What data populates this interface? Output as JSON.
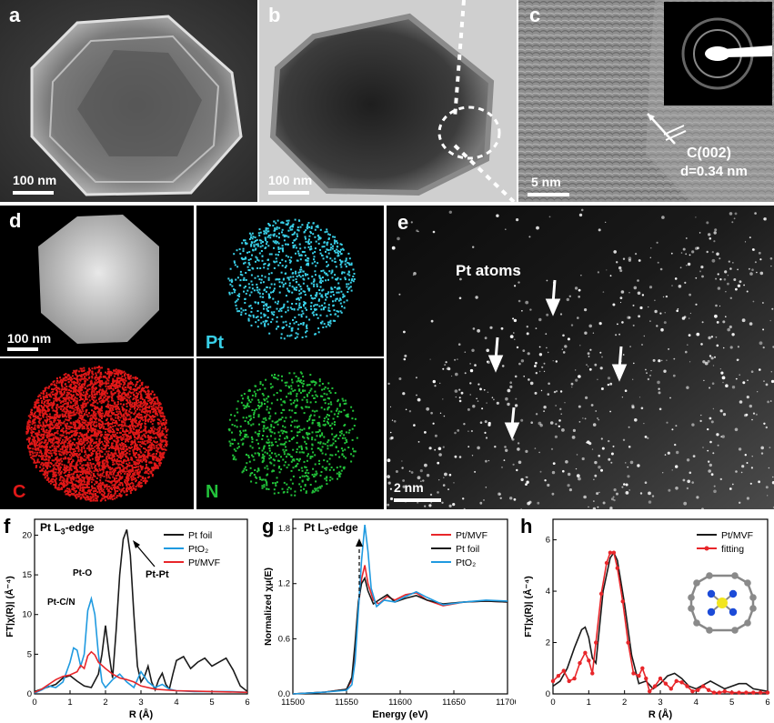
{
  "panels": {
    "a": {
      "label": "a",
      "scale": "100 nm"
    },
    "b": {
      "label": "b",
      "scale": "100 nm"
    },
    "c": {
      "label": "c",
      "scale": "5 nm",
      "annot1": "C(002)",
      "annot2": "d=0.34 nm"
    },
    "d": {
      "label": "d",
      "scale": "100 nm",
      "map_pt": "Pt",
      "map_c": "C",
      "map_n": "N"
    },
    "e": {
      "label": "e",
      "scale": "2 nm",
      "annot": "Pt atoms"
    },
    "f": {
      "label": "f",
      "edge": "Pt L",
      "edge_sub": "3",
      "edge_suffix": "-edge",
      "peak_pto": "Pt-O",
      "peak_ptcn": "Pt-C/N",
      "peak_ptpt": "Pt-Pt"
    },
    "g": {
      "label": "g",
      "edge": "Pt L",
      "edge_sub": "3",
      "edge_suffix": "-edge"
    },
    "h": {
      "label": "h"
    }
  },
  "colors": {
    "black": "#1a1a1a",
    "red": "#e8262a",
    "blue": "#1f9ae0",
    "cyan": "#39d0e8",
    "green": "#22c23a",
    "mapred": "#e01818"
  },
  "chart_data": [
    {
      "type": "line",
      "panel": "f",
      "xlabel": "R (Å)",
      "ylabel": "FT|χ(R)| (Å⁻⁴)",
      "xlim": [
        0,
        6
      ],
      "ylim": [
        0,
        22
      ],
      "xticks": [
        0,
        1,
        2,
        3,
        4,
        5,
        6
      ],
      "yticks": [
        0,
        5,
        10,
        15,
        20
      ],
      "legend": "top-right",
      "series": [
        {
          "name": "Pt foil",
          "color": "#1a1a1a",
          "x": [
            0,
            0.2,
            0.4,
            0.6,
            0.8,
            1.0,
            1.2,
            1.4,
            1.6,
            1.8,
            1.9,
            2.0,
            2.1,
            2.2,
            2.3,
            2.4,
            2.5,
            2.6,
            2.7,
            2.8,
            2.9,
            3.0,
            3.1,
            3.2,
            3.3,
            3.4,
            3.5,
            3.6,
            3.7,
            3.8,
            3.9,
            4.0,
            4.2,
            4.4,
            4.6,
            4.8,
            5.0,
            5.2,
            5.4,
            5.6,
            5.8,
            6.0
          ],
          "y": [
            0.3,
            0.6,
            0.9,
            1.2,
            2.0,
            2.3,
            1.6,
            1.0,
            0.8,
            2.5,
            5.0,
            8.6,
            5.0,
            2.0,
            8.0,
            15.0,
            19.5,
            20.7,
            17.5,
            10.0,
            3.5,
            1.5,
            2.2,
            3.5,
            1.5,
            0.5,
            1.8,
            2.6,
            1.2,
            0.6,
            2.5,
            4.2,
            4.7,
            3.2,
            4.0,
            4.5,
            3.5,
            4.0,
            4.5,
            3.0,
            1.0,
            0.3
          ]
        },
        {
          "name": "PtO₂",
          "color": "#1f9ae0",
          "x": [
            0,
            0.2,
            0.4,
            0.6,
            0.8,
            1.0,
            1.1,
            1.2,
            1.3,
            1.4,
            1.5,
            1.6,
            1.7,
            1.8,
            1.9,
            2.0,
            2.2,
            2.4,
            2.6,
            2.8,
            3.0,
            3.2,
            3.4,
            3.6,
            3.8,
            4.0,
            4.5,
            5.0,
            5.5,
            6.0
          ],
          "y": [
            0.1,
            0.5,
            1.0,
            0.8,
            1.5,
            4.0,
            5.8,
            5.5,
            3.5,
            5.0,
            10.5,
            12.0,
            10.0,
            5.0,
            1.5,
            0.8,
            1.8,
            2.5,
            1.5,
            0.8,
            2.8,
            1.5,
            0.8,
            1.2,
            0.6,
            0.4,
            0.3,
            0.3,
            0.3,
            0.2
          ]
        },
        {
          "name": "Pt/MVF",
          "color": "#e8262a",
          "x": [
            0,
            0.2,
            0.4,
            0.6,
            0.8,
            1.0,
            1.2,
            1.3,
            1.4,
            1.5,
            1.6,
            1.7,
            1.8,
            2.0,
            2.2,
            2.4,
            2.6,
            2.8,
            3.0,
            3.4,
            4.0,
            5.0,
            6.0
          ],
          "y": [
            0.2,
            0.6,
            1.2,
            1.8,
            2.2,
            2.4,
            2.8,
            3.6,
            3.2,
            4.8,
            5.3,
            4.9,
            4.0,
            3.2,
            2.5,
            2.0,
            1.8,
            1.5,
            1.0,
            0.6,
            0.4,
            0.3,
            0.2
          ]
        }
      ]
    },
    {
      "type": "line",
      "panel": "g",
      "xlabel": "Energy (eV)",
      "ylabel": "Normalized χμ(E)",
      "xlim": [
        11500,
        11700
      ],
      "ylim": [
        0,
        1.9
      ],
      "xticks": [
        11500,
        11550,
        11600,
        11650,
        11700
      ],
      "yticks": [
        0.0,
        0.6,
        1.2,
        1.8
      ],
      "legend": "top-right",
      "series": [
        {
          "name": "Pt/MVF",
          "color": "#e8262a",
          "x": [
            11500,
            11530,
            11550,
            11555,
            11558,
            11561,
            11564,
            11567,
            11570,
            11575,
            11580,
            11588,
            11595,
            11605,
            11615,
            11625,
            11640,
            11660,
            11680,
            11700
          ],
          "y": [
            0.0,
            0.02,
            0.05,
            0.15,
            0.45,
            0.95,
            1.25,
            1.4,
            1.2,
            1.02,
            0.98,
            1.06,
            1.02,
            1.08,
            1.1,
            1.02,
            0.96,
            1.0,
            1.01,
            1.0
          ]
        },
        {
          "name": "Pt foil",
          "color": "#1a1a1a",
          "x": [
            11500,
            11530,
            11550,
            11555,
            11558,
            11561,
            11564,
            11567,
            11570,
            11575,
            11580,
            11588,
            11595,
            11605,
            11615,
            11625,
            11640,
            11660,
            11680,
            11700
          ],
          "y": [
            0.0,
            0.02,
            0.05,
            0.18,
            0.55,
            1.0,
            1.2,
            1.26,
            1.12,
            0.98,
            1.02,
            1.08,
            1.0,
            1.04,
            1.07,
            1.02,
            0.98,
            1.0,
            1.01,
            1.0
          ]
        },
        {
          "name": "PtO₂",
          "color": "#1f9ae0",
          "x": [
            11500,
            11530,
            11550,
            11555,
            11558,
            11561,
            11564,
            11567,
            11570,
            11573,
            11578,
            11585,
            11595,
            11605,
            11615,
            11625,
            11640,
            11660,
            11680,
            11700
          ],
          "y": [
            0.0,
            0.02,
            0.04,
            0.1,
            0.35,
            0.9,
            1.45,
            1.84,
            1.55,
            1.15,
            0.95,
            1.02,
            1.0,
            1.06,
            1.11,
            1.05,
            0.97,
            1.0,
            1.02,
            1.01
          ]
        }
      ]
    },
    {
      "type": "line",
      "panel": "h",
      "xlabel": "R (Å)",
      "ylabel": "FT|χ(R)| (Å⁻⁴)",
      "xlim": [
        0,
        6
      ],
      "ylim": [
        0,
        6.8
      ],
      "xticks": [
        0,
        1,
        2,
        3,
        4,
        5,
        6
      ],
      "yticks": [
        0,
        2,
        4,
        6
      ],
      "legend": "top-right",
      "series": [
        {
          "name": "Pt/MVF",
          "color": "#1a1a1a",
          "x": [
            0,
            0.2,
            0.4,
            0.6,
            0.8,
            0.9,
            1.0,
            1.1,
            1.2,
            1.4,
            1.6,
            1.7,
            1.8,
            2.0,
            2.2,
            2.4,
            2.6,
            2.8,
            3.0,
            3.2,
            3.4,
            3.6,
            3.8,
            4.0,
            4.4,
            4.8,
            5.2,
            5.4,
            5.6,
            6.0
          ],
          "y": [
            0.3,
            0.5,
            1.0,
            1.8,
            2.5,
            2.6,
            2.2,
            1.4,
            1.2,
            4.0,
            5.3,
            5.5,
            5.2,
            3.5,
            1.5,
            0.4,
            0.5,
            0.2,
            0.4,
            0.7,
            0.8,
            0.6,
            0.3,
            0.2,
            0.5,
            0.2,
            0.4,
            0.4,
            0.2,
            0.1
          ]
        },
        {
          "name": "fitting",
          "color": "#e8262a",
          "markers": true,
          "x": [
            0,
            0.15,
            0.3,
            0.45,
            0.6,
            0.75,
            0.9,
            1.0,
            1.1,
            1.2,
            1.35,
            1.5,
            1.6,
            1.7,
            1.8,
            1.95,
            2.1,
            2.25,
            2.4,
            2.5,
            2.6,
            2.7,
            2.85,
            3.0,
            3.15,
            3.3,
            3.45,
            3.6,
            3.75,
            3.9,
            4.05,
            4.2,
            4.35,
            4.5,
            4.65,
            4.8,
            5.0,
            5.2,
            5.4,
            5.6,
            5.8,
            6.0
          ],
          "y": [
            0.5,
            0.7,
            0.9,
            0.5,
            0.6,
            1.2,
            1.6,
            1.3,
            0.8,
            2.0,
            3.9,
            5.1,
            5.5,
            5.5,
            4.9,
            3.6,
            2.0,
            0.8,
            0.7,
            1.0,
            0.6,
            0.1,
            0.3,
            0.6,
            0.4,
            0.2,
            0.5,
            0.45,
            0.3,
            0.1,
            0.15,
            0.3,
            0.15,
            0.05,
            0.05,
            0.1,
            0.05,
            0.05,
            0.05,
            0.05,
            0.05,
            0.05
          ]
        }
      ]
    }
  ]
}
